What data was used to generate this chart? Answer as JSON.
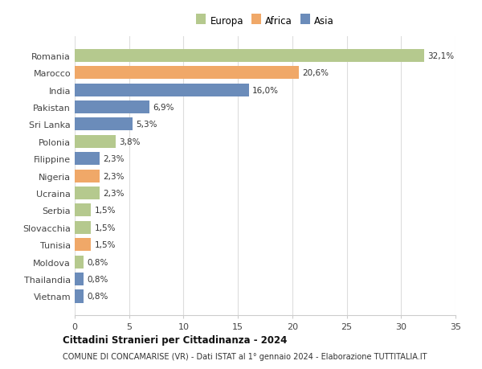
{
  "countries": [
    "Romania",
    "Marocco",
    "India",
    "Pakistan",
    "Sri Lanka",
    "Polonia",
    "Filippine",
    "Nigeria",
    "Ucraina",
    "Serbia",
    "Slovacchia",
    "Tunisia",
    "Moldova",
    "Thailandia",
    "Vietnam"
  ],
  "values": [
    32.1,
    20.6,
    16.0,
    6.9,
    5.3,
    3.8,
    2.3,
    2.3,
    2.3,
    1.5,
    1.5,
    1.5,
    0.8,
    0.8,
    0.8
  ],
  "labels": [
    "32,1%",
    "20,6%",
    "16,0%",
    "6,9%",
    "5,3%",
    "3,8%",
    "2,3%",
    "2,3%",
    "2,3%",
    "1,5%",
    "1,5%",
    "1,5%",
    "0,8%",
    "0,8%",
    "0,8%"
  ],
  "continents": [
    "Europa",
    "Africa",
    "Asia",
    "Asia",
    "Asia",
    "Europa",
    "Asia",
    "Africa",
    "Europa",
    "Europa",
    "Europa",
    "Africa",
    "Europa",
    "Asia",
    "Asia"
  ],
  "colors": {
    "Europa": "#b5c98e",
    "Africa": "#f0a868",
    "Asia": "#6b8cba"
  },
  "legend_labels": [
    "Europa",
    "Africa",
    "Asia"
  ],
  "title": "Cittadini Stranieri per Cittadinanza - 2024",
  "subtitle": "COMUNE DI CONCAMARISE (VR) - Dati ISTAT al 1° gennaio 2024 - Elaborazione TUTTITALIA.IT",
  "xlim": [
    0,
    35
  ],
  "xticks": [
    0,
    5,
    10,
    15,
    20,
    25,
    30,
    35
  ],
  "background_color": "#ffffff",
  "grid_color": "#dddddd"
}
